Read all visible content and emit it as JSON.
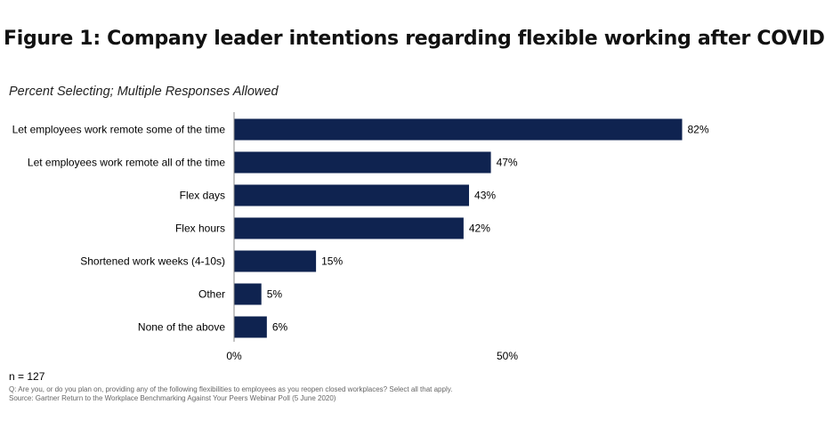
{
  "title": "Figure 1: Company leader intentions regarding flexible working after COVID",
  "subtitle": "Percent Selecting; Multiple Responses Allowed",
  "n_label": "n = 127",
  "question_note": "Q: Are you, or do you plan on, providing any of the following flexibilities to employees as you reopen closed workplaces? Select all that apply.",
  "source_note": "Source: Gartner Return to the Workplace Benchmarking Against Your Peers Webinar Poll (5 June 2020)",
  "colors": {
    "bar": "#0f2350",
    "axis": "#888888"
  },
  "chart_data": {
    "type": "bar",
    "orientation": "horizontal",
    "categories": [
      "Let employees work remote some of the time",
      "Let employees work remote all of the time",
      "Flex days",
      "Flex hours",
      "Shortened work weeks (4-10s)",
      "Other",
      "None of the above"
    ],
    "values": [
      82,
      47,
      43,
      42,
      15,
      5,
      6
    ],
    "value_labels": [
      "82%",
      "47%",
      "43%",
      "42%",
      "15%",
      "5%",
      "6%"
    ],
    "xlim": [
      0,
      100
    ],
    "x_ticks": [
      0,
      50
    ],
    "x_tick_labels": [
      "0%",
      "50%"
    ],
    "grid": false
  }
}
